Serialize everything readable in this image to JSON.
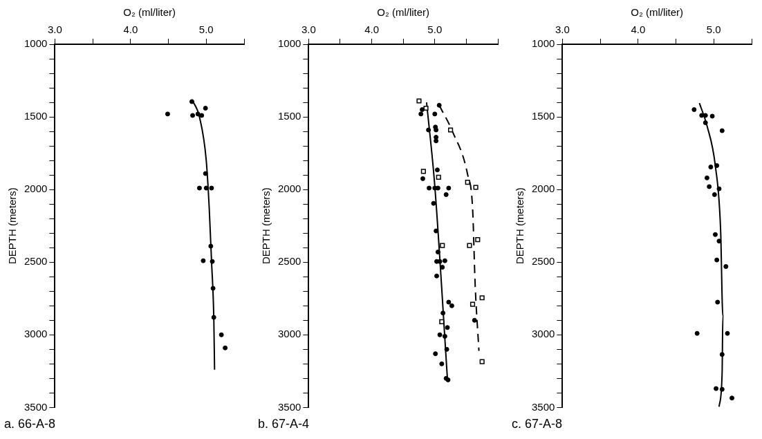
{
  "chart_data": [
    {
      "type": "scatter",
      "title": "a. 66-A-8",
      "xlabel": "O₂ (ml/liter)",
      "ylabel": "DEPTH (meters)",
      "xlim": [
        3.0,
        5.5
      ],
      "ylim": [
        3500,
        1000
      ],
      "xticks": [
        {
          "value": 3.0,
          "label": "3.0"
        },
        {
          "value": 3.5,
          "label": null
        },
        {
          "value": 4.0,
          "label": "4.0"
        },
        {
          "value": 4.5,
          "label": null
        },
        {
          "value": 5.0,
          "label": "5.0"
        },
        {
          "value": 5.5,
          "label": null
        }
      ],
      "yticks": [
        1000,
        {
          "value": 1100,
          "label": null
        },
        {
          "value": 1200,
          "label": null
        },
        {
          "value": 1300,
          "label": null
        },
        {
          "value": 1400,
          "label": null
        },
        1500,
        {
          "value": 1600,
          "label": null
        },
        {
          "value": 1700,
          "label": null
        },
        {
          "value": 1800,
          "label": null
        },
        {
          "value": 1900,
          "label": null
        },
        2000,
        {
          "value": 2100,
          "label": null
        },
        {
          "value": 2200,
          "label": null
        },
        {
          "value": 2300,
          "label": null
        },
        {
          "value": 2400,
          "label": null
        },
        2500,
        {
          "value": 2600,
          "label": null
        },
        {
          "value": 2700,
          "label": null
        },
        {
          "value": 2800,
          "label": null
        },
        {
          "value": 2900,
          "label": null
        },
        3000,
        {
          "value": 3100,
          "label": null
        },
        {
          "value": 3200,
          "label": null
        },
        {
          "value": 3300,
          "label": null
        },
        {
          "value": 3400,
          "label": null
        },
        3500
      ],
      "grid": false,
      "legend": false,
      "series": [
        {
          "type": "scatter",
          "marker": "circle",
          "color": "#000000",
          "x": [
            4.49,
            4.81,
            4.82,
            4.89,
            4.94,
            4.99,
            4.99,
            4.91,
            5.0,
            5.07,
            5.06,
            4.96,
            5.08,
            5.09,
            5.1,
            5.2,
            5.25
          ],
          "values": [
            1480,
            1395,
            1490,
            1480,
            1490,
            1440,
            1890,
            1990,
            1990,
            1990,
            2390,
            2490,
            2495,
            2680,
            2880,
            3000,
            3090
          ]
        },
        {
          "type": "line",
          "marker": "none",
          "line_style": "solid",
          "color": "#000000",
          "x": [
            4.81,
            4.91,
            5.0,
            5.04,
            5.07,
            5.1,
            5.11
          ],
          "values": [
            1380,
            1500,
            1800,
            2135,
            2495,
            2890,
            3240
          ]
        }
      ]
    },
    {
      "type": "scatter",
      "title": "b. 67-A-4",
      "xlabel": "O₂ (ml/liter)",
      "ylabel": "DEPTH (meters)",
      "xlim": [
        3.0,
        6.0
      ],
      "ylim": [
        3500,
        1000
      ],
      "xticks": [
        {
          "value": 3.0,
          "label": "3.0"
        },
        {
          "value": 3.5,
          "label": null
        },
        {
          "value": 4.0,
          "label": "4.0"
        },
        {
          "value": 4.5,
          "label": null
        },
        {
          "value": 5.0,
          "label": "5.0"
        },
        {
          "value": 5.5,
          "label": null
        },
        {
          "value": 6.0,
          "label": null
        }
      ],
      "yticks": [
        1000,
        {
          "value": 1100,
          "label": null
        },
        {
          "value": 1200,
          "label": null
        },
        {
          "value": 1300,
          "label": null
        },
        {
          "value": 1400,
          "label": null
        },
        1500,
        {
          "value": 1600,
          "label": null
        },
        {
          "value": 1700,
          "label": null
        },
        {
          "value": 1800,
          "label": null
        },
        {
          "value": 1900,
          "label": null
        },
        2000,
        {
          "value": 2100,
          "label": null
        },
        {
          "value": 2200,
          "label": null
        },
        {
          "value": 2300,
          "label": null
        },
        {
          "value": 2400,
          "label": null
        },
        2500,
        {
          "value": 2600,
          "label": null
        },
        {
          "value": 2700,
          "label": null
        },
        {
          "value": 2800,
          "label": null
        },
        {
          "value": 2900,
          "label": null
        },
        3000,
        {
          "value": 3100,
          "label": null
        },
        {
          "value": 3200,
          "label": null
        },
        {
          "value": 3300,
          "label": null
        },
        {
          "value": 3400,
          "label": null
        },
        3500
      ],
      "grid": false,
      "legend": false,
      "series": [
        {
          "type": "scatter",
          "marker": "circle",
          "color": "#000000",
          "x": [
            4.78,
            4.8,
            4.9,
            5.0,
            5.01,
            5.02,
            5.02,
            5.02,
            5.04,
            4.81,
            4.91,
            5.0,
            5.05,
            5.22,
            5.18,
            4.98,
            5.02,
            5.05,
            5.03,
            5.08,
            5.16,
            5.12,
            5.03,
            5.22,
            5.27,
            5.13,
            5.08,
            5.2,
            5.16,
            5.19,
            5.01,
            5.11,
            5.18,
            5.21,
            5.07,
            5.63
          ],
          "values": [
            1480,
            1450,
            1590,
            1480,
            1570,
            1590,
            1640,
            1665,
            1865,
            1925,
            1990,
            1990,
            1990,
            1990,
            2035,
            2095,
            2285,
            2430,
            2495,
            2495,
            2490,
            2535,
            2595,
            2775,
            2800,
            2850,
            3000,
            2950,
            3010,
            3100,
            3130,
            3200,
            3300,
            3310,
            1420,
            2900
          ]
        },
        {
          "type": "scatter",
          "marker": "square",
          "color": "#000000",
          "x": [
            4.75,
            4.86,
            5.25,
            4.82,
            5.06,
            5.52,
            5.65,
            5.55,
            5.68,
            5.12,
            5.6,
            5.75,
            5.11,
            5.75
          ],
          "values": [
            1390,
            1440,
            1590,
            1875,
            1915,
            1950,
            1985,
            2385,
            2345,
            2385,
            2790,
            2745,
            2910,
            3185
          ]
        },
        {
          "type": "line",
          "marker": "none",
          "line_style": "solid",
          "color": "#000000",
          "x": [
            4.87,
            5.0,
            5.2
          ],
          "values": [
            1400,
            1975,
            3300
          ]
        },
        {
          "type": "line",
          "marker": "none",
          "line_style": "dashed",
          "color": "#000000",
          "x": [
            5.07,
            5.28,
            5.52,
            5.6,
            5.64,
            5.7
          ],
          "values": [
            1420,
            1600,
            1895,
            2135,
            2655,
            3110
          ]
        }
      ]
    },
    {
      "type": "scatter",
      "title": "c. 67-A-8",
      "xlabel": "O₂ (ml/liter)",
      "ylabel": "DEPTH (meters)",
      "xlim": [
        3.0,
        5.5
      ],
      "ylim": [
        3500,
        1000
      ],
      "xticks": [
        {
          "value": 3.0,
          "label": "3.0"
        },
        {
          "value": 3.5,
          "label": null
        },
        {
          "value": 4.0,
          "label": "4.0"
        },
        {
          "value": 4.5,
          "label": null
        },
        {
          "value": 5.0,
          "label": "5.0"
        },
        {
          "value": 5.5,
          "label": null
        }
      ],
      "yticks": [
        1000,
        {
          "value": 1100,
          "label": null
        },
        {
          "value": 1200,
          "label": null
        },
        {
          "value": 1300,
          "label": null
        },
        {
          "value": 1400,
          "label": null
        },
        1500,
        {
          "value": 1600,
          "label": null
        },
        {
          "value": 1700,
          "label": null
        },
        {
          "value": 1800,
          "label": null
        },
        {
          "value": 1900,
          "label": null
        },
        2000,
        {
          "value": 2100,
          "label": null
        },
        {
          "value": 2200,
          "label": null
        },
        {
          "value": 2300,
          "label": null
        },
        {
          "value": 2400,
          "label": null
        },
        2500,
        {
          "value": 2600,
          "label": null
        },
        {
          "value": 2700,
          "label": null
        },
        {
          "value": 2800,
          "label": null
        },
        {
          "value": 2900,
          "label": null
        },
        3000,
        {
          "value": 3100,
          "label": null
        },
        {
          "value": 3200,
          "label": null
        },
        {
          "value": 3300,
          "label": null
        },
        {
          "value": 3400,
          "label": null
        },
        3500
      ],
      "grid": false,
      "legend": false,
      "series": [
        {
          "type": "scatter",
          "marker": "circle",
          "color": "#000000",
          "x": [
            4.74,
            4.84,
            4.89,
            4.98,
            4.89,
            5.11,
            4.96,
            5.04,
            4.91,
            4.94,
            5.07,
            5.01,
            5.02,
            5.07,
            5.04,
            5.16,
            5.05,
            4.78,
            5.18,
            5.11,
            5.03,
            5.11,
            5.24
          ],
          "values": [
            1450,
            1490,
            1490,
            1495,
            1540,
            1595,
            1845,
            1835,
            1920,
            1980,
            1995,
            2035,
            2310,
            2355,
            2485,
            2530,
            2775,
            2990,
            2990,
            3135,
            3370,
            3375,
            3435
          ]
        },
        {
          "type": "line",
          "marker": "none",
          "line_style": "solid",
          "color": "#000000",
          "x": [
            4.81,
            4.91,
            5.02,
            5.09,
            5.12,
            5.11,
            5.07
          ],
          "values": [
            1405,
            1560,
            1835,
            2275,
            2870,
            3265,
            3495
          ]
        }
      ]
    }
  ]
}
